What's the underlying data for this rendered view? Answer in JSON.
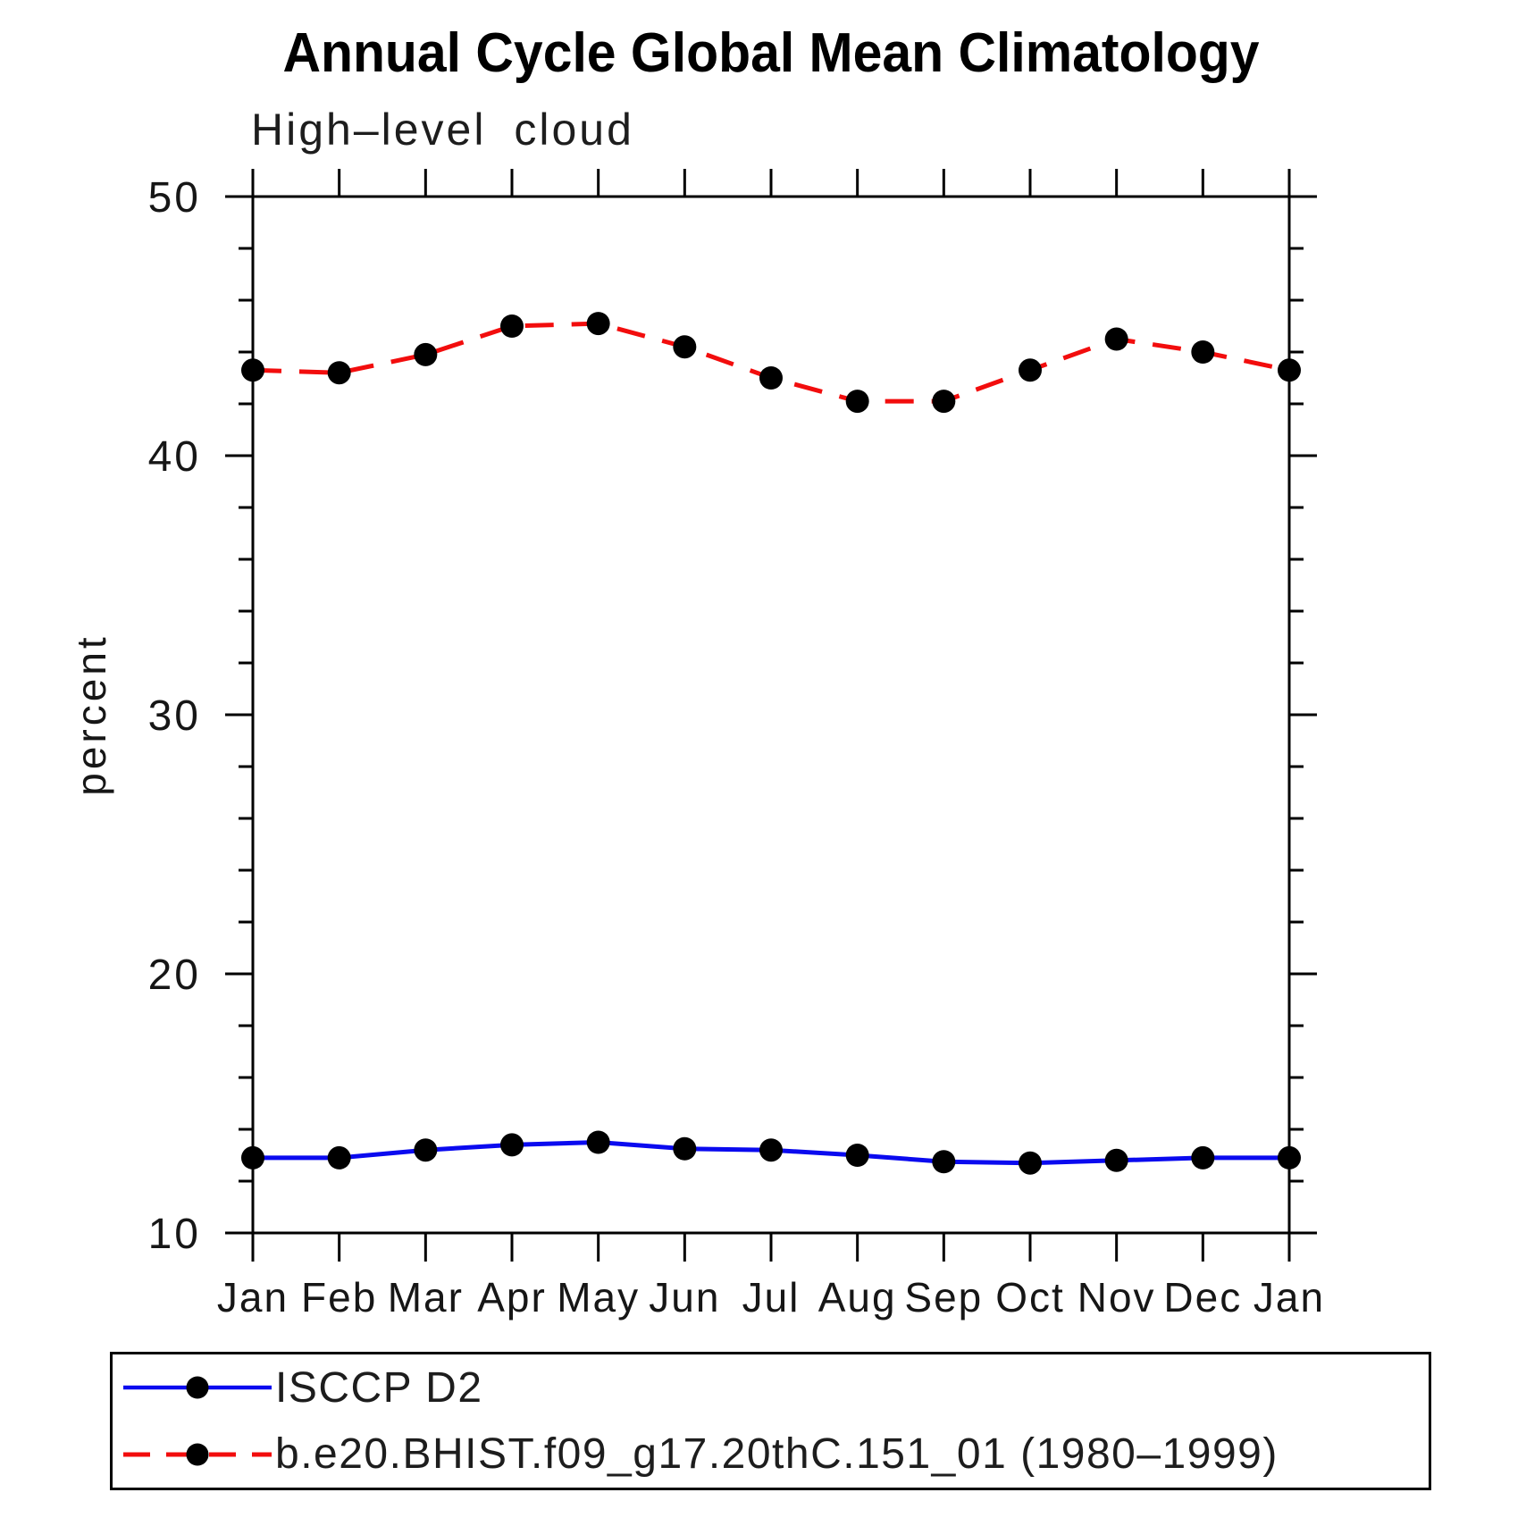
{
  "chart_data": {
    "type": "line",
    "title": "Annual Cycle Global Mean Climatology",
    "subtitle": "High–level cloud",
    "ylabel": "percent",
    "x_tick_labels": [
      "Jan",
      "Feb",
      "Mar",
      "Apr",
      "May",
      "Jun",
      "Jul",
      "Aug",
      "Sep",
      "Oct",
      "Nov",
      "Dec",
      "Jan"
    ],
    "ylim": [
      10,
      50
    ],
    "y_major_ticks": [
      10,
      20,
      30,
      40,
      50
    ],
    "y_minor_step": 2,
    "grid": false,
    "legend_position": "bottom-left-box",
    "marker": {
      "shape": "filled-circle",
      "color": "#000000"
    },
    "series": [
      {
        "name": "ISCCP D2",
        "color": "#0a0aef",
        "line_style": "solid",
        "values": [
          12.9,
          12.9,
          13.2,
          13.4,
          13.5,
          13.25,
          13.2,
          13.0,
          12.75,
          12.7,
          12.8,
          12.9,
          12.9
        ]
      },
      {
        "name": "b.e20.BHIST.f09_g17.20thC.151_01 (1980–1999)",
        "color": "#f20d0d",
        "line_style": "dashed",
        "values": [
          43.3,
          43.2,
          43.9,
          45.0,
          45.1,
          44.2,
          43.0,
          42.1,
          42.1,
          43.3,
          44.5,
          44.0,
          43.3
        ]
      }
    ]
  }
}
